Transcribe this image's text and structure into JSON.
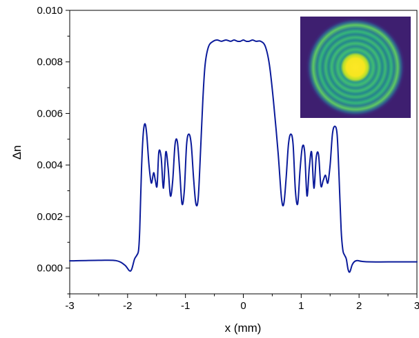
{
  "chart_data": {
    "type": "line",
    "xlabel": "x (mm)",
    "ylabel": "Δn",
    "xlim": [
      -3,
      3
    ],
    "ylim": [
      -0.001,
      0.01
    ],
    "x_ticks": [
      "-3",
      "-2",
      "-1",
      "0",
      "1",
      "2",
      "3"
    ],
    "y_ticks": [
      "0.000",
      "0.002",
      "0.004",
      "0.006",
      "0.008",
      "0.010"
    ],
    "grid": false,
    "line_color": "#0a1a9a",
    "series": [
      {
        "x": [
          -3.0,
          -2.5,
          -2.2,
          -2.05,
          -1.97,
          -1.93,
          -1.88,
          -1.84,
          -1.81,
          -1.79,
          -1.76,
          -1.73,
          -1.7,
          -1.67,
          -1.63,
          -1.59,
          -1.55,
          -1.52,
          -1.49,
          -1.46,
          -1.42,
          -1.38,
          -1.34,
          -1.3,
          -1.26,
          -1.22,
          -1.18,
          -1.14,
          -1.1,
          -1.06,
          -1.02,
          -0.98,
          -0.94,
          -0.9,
          -0.86,
          -0.82,
          -0.78,
          -0.74,
          -0.7,
          -0.66,
          -0.6,
          -0.52,
          -0.45,
          -0.38,
          -0.3,
          -0.22,
          -0.16,
          -0.1,
          -0.05,
          0.0,
          0.05,
          0.1,
          0.16,
          0.22,
          0.3,
          0.38,
          0.45,
          0.52,
          0.6,
          0.66,
          0.7,
          0.74,
          0.78,
          0.82,
          0.86,
          0.9,
          0.94,
          0.98,
          1.02,
          1.06,
          1.1,
          1.14,
          1.18,
          1.22,
          1.26,
          1.3,
          1.34,
          1.38,
          1.42,
          1.46,
          1.5,
          1.54,
          1.58,
          1.62,
          1.65,
          1.69,
          1.72,
          1.75,
          1.78,
          1.81,
          1.84,
          1.88,
          1.92,
          1.97,
          2.05,
          2.2,
          2.5,
          3.0
        ],
        "y": [
          0.00028,
          0.0003,
          0.00029,
          0.00012,
          -0.0001,
          -5e-05,
          0.00035,
          0.0005,
          0.0007,
          0.0015,
          0.0038,
          0.0052,
          0.0056,
          0.0052,
          0.004,
          0.0033,
          0.0037,
          0.0034,
          0.0032,
          0.0045,
          0.0043,
          0.0031,
          0.0045,
          0.0039,
          0.0028,
          0.0034,
          0.0048,
          0.0049,
          0.0038,
          0.0025,
          0.003,
          0.0048,
          0.0052,
          0.0048,
          0.0035,
          0.0025,
          0.0027,
          0.0045,
          0.0065,
          0.0079,
          0.0086,
          0.0088,
          0.00885,
          0.0088,
          0.00885,
          0.0088,
          0.00885,
          0.0088,
          0.0088,
          0.00885,
          0.0088,
          0.0088,
          0.00885,
          0.0088,
          0.0088,
          0.0086,
          0.0079,
          0.0065,
          0.0045,
          0.0027,
          0.0025,
          0.0035,
          0.0048,
          0.0052,
          0.0048,
          0.003,
          0.0025,
          0.0038,
          0.0047,
          0.0045,
          0.0028,
          0.0039,
          0.0045,
          0.0031,
          0.0043,
          0.0044,
          0.0032,
          0.0034,
          0.0036,
          0.0033,
          0.004,
          0.0052,
          0.0055,
          0.0052,
          0.0038,
          0.0015,
          0.0007,
          0.0005,
          0.00035,
          -5e-05,
          -0.00015,
          0.00012,
          0.00025,
          0.00029,
          0.00026,
          0.00024,
          0.00024,
          0.00024
        ]
      }
    ],
    "inset": {
      "type": "heatmap",
      "description_colormap": "viridis",
      "background": "#3b1f6e"
    }
  }
}
